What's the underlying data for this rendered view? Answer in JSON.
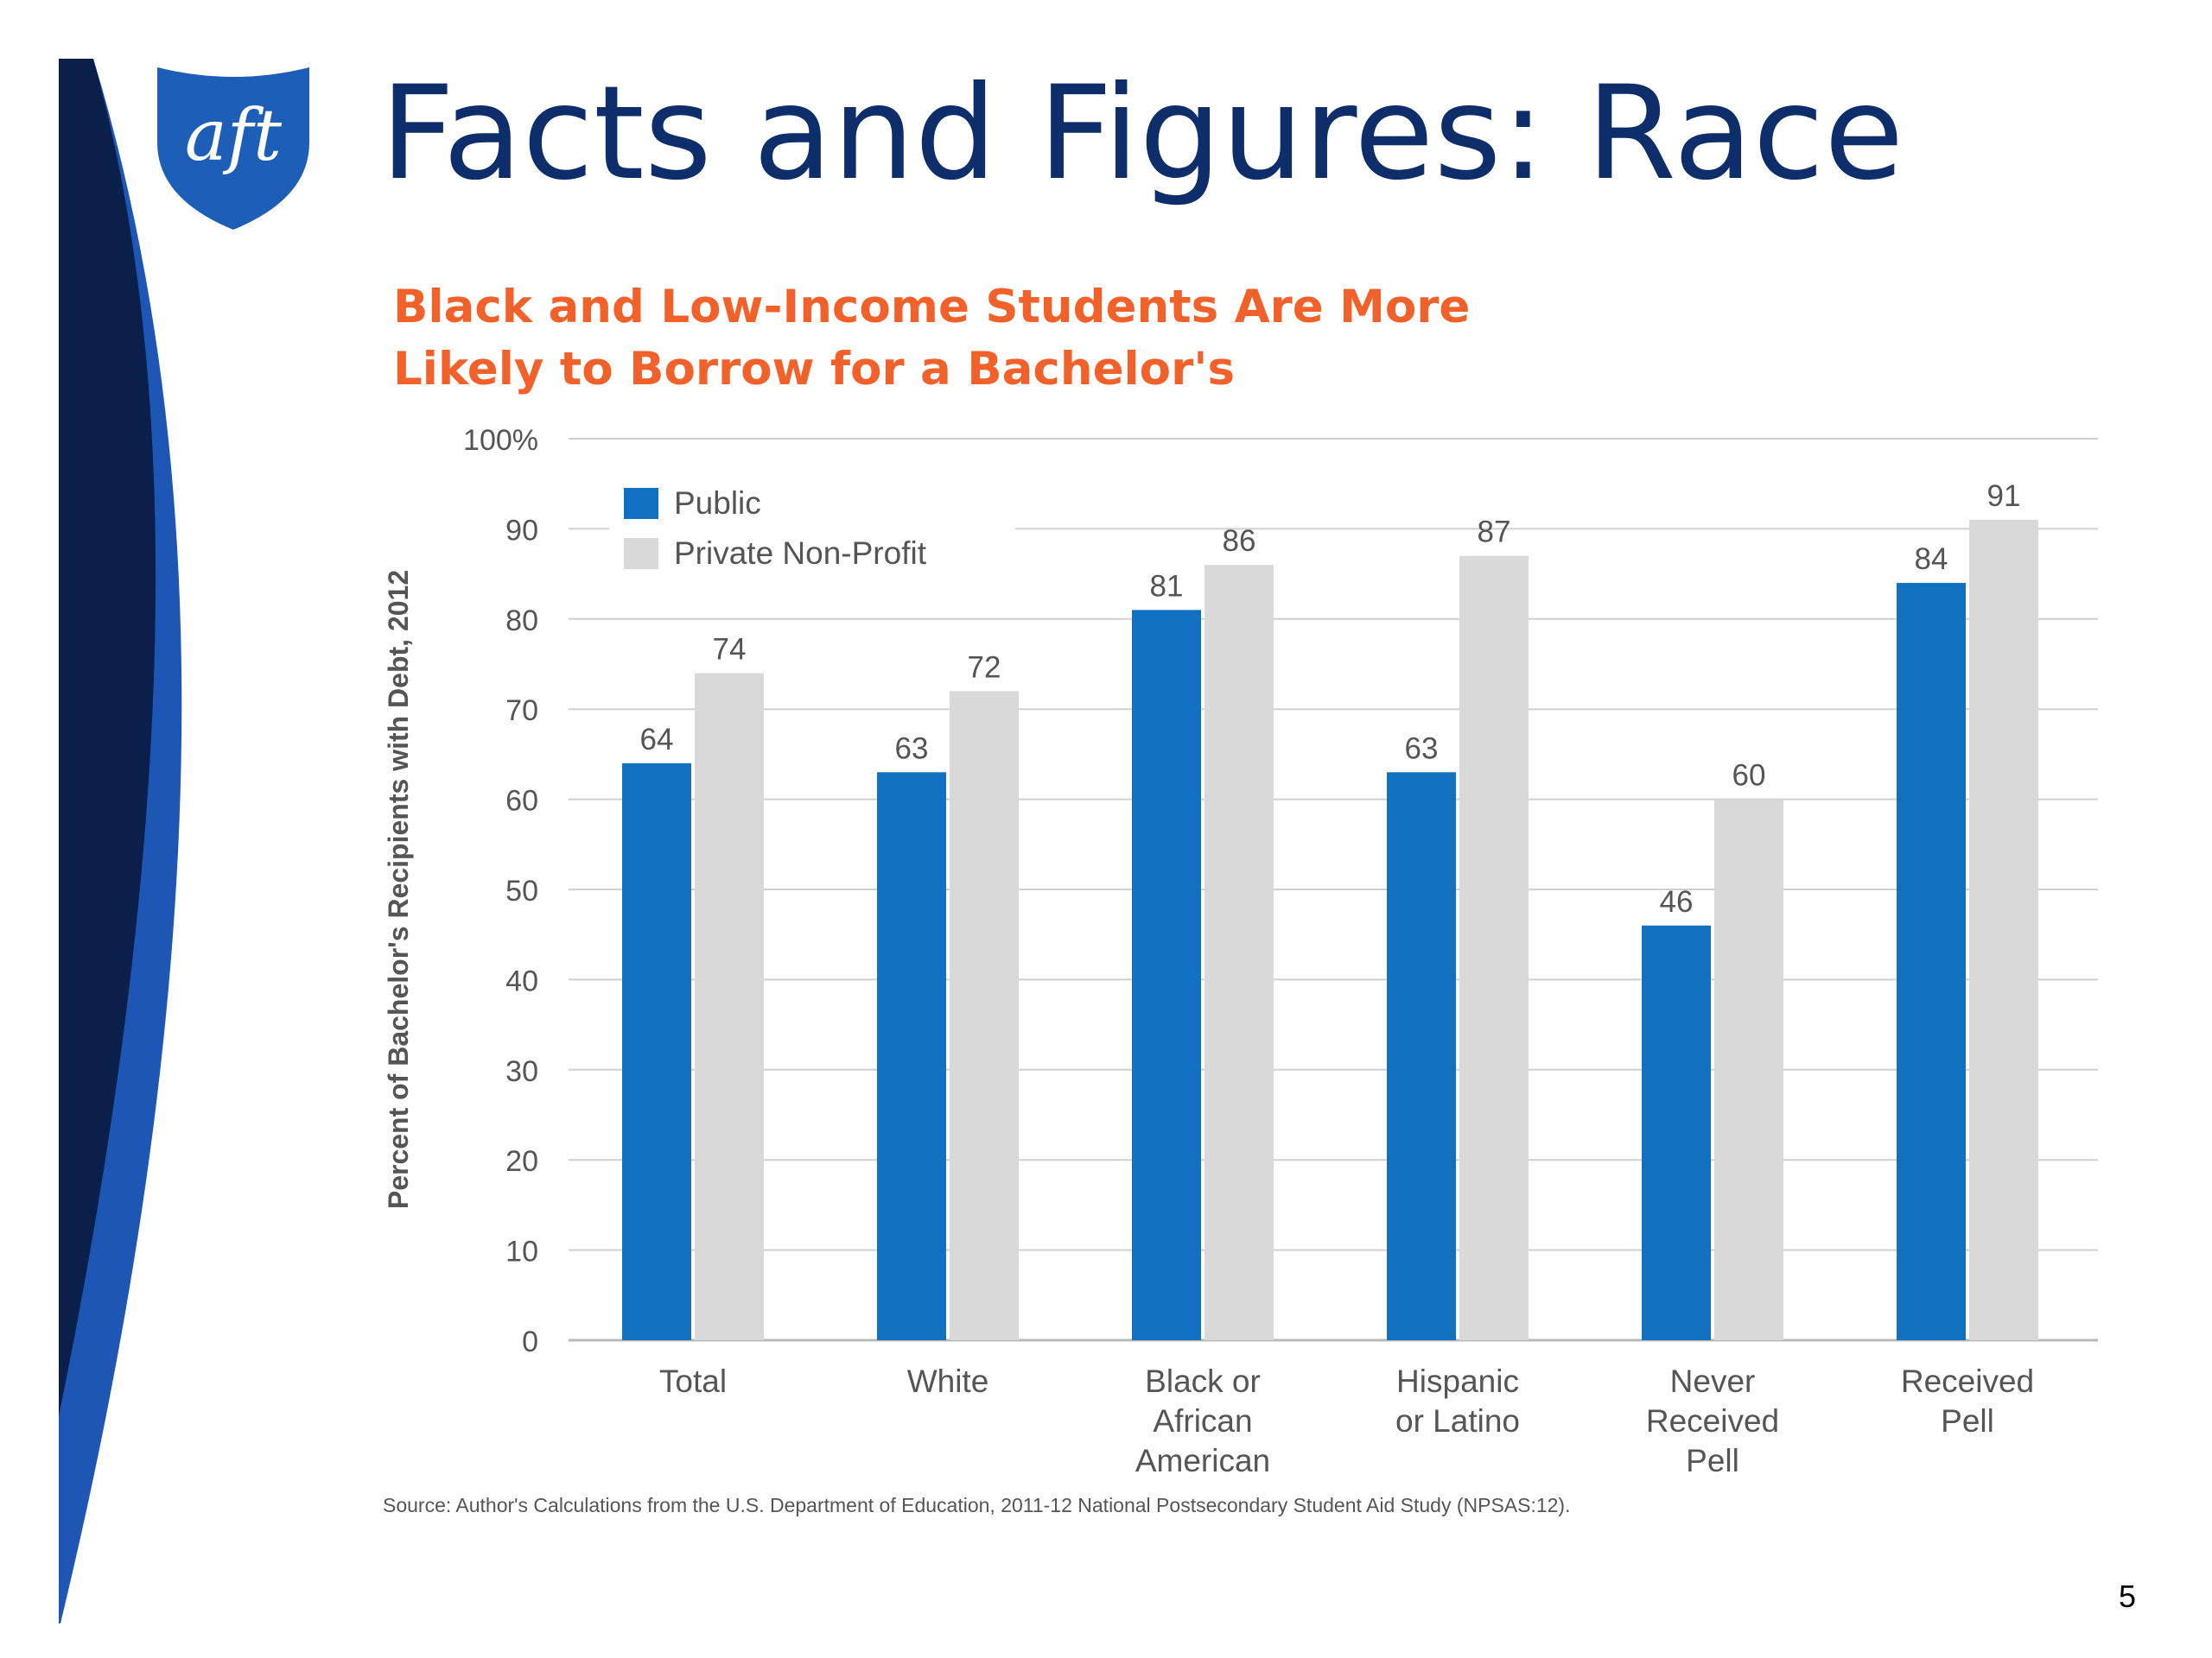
{
  "slide": {
    "title": "Facts and Figures: Race",
    "subtitle_line1": "Black and Low-Income Students Are More",
    "subtitle_line2": "Likely to Borrow for a Bachelor's",
    "source": "Source: Author's Calculations from the U.S. Department of Education, 2011-12 National Postsecondary Student Aid Study (NPSAS:12).",
    "page_number": "5",
    "logo_text": "aft"
  },
  "colors": {
    "title": "#0d2d6b",
    "subtitle": "#f2612a",
    "public": "#1170bf",
    "private": "#d9d9d9",
    "deco_navy": "#0b1f4b",
    "deco_blue": "#1d56b5",
    "logo": "#1d5fb8"
  },
  "chart_data": {
    "type": "bar",
    "title": "Black and Low-Income Students Are More Likely to Borrow for a Bachelor's",
    "ylabel": "Percent of Bachelor's Recipients with Debt, 2012",
    "xlabel": "",
    "ylim": [
      0,
      100
    ],
    "yticks": [
      0,
      10,
      20,
      30,
      40,
      50,
      60,
      70,
      80,
      90,
      100
    ],
    "ytick_labels": [
      "0",
      "10",
      "20",
      "30",
      "40",
      "50",
      "60",
      "70",
      "80",
      "90",
      "100%"
    ],
    "grid": true,
    "legend_position": "top-left",
    "categories": [
      [
        "Total"
      ],
      [
        "White"
      ],
      [
        "Black or",
        "African",
        "American"
      ],
      [
        "Hispanic",
        "or Latino"
      ],
      [
        "Never",
        "Received",
        "Pell"
      ],
      [
        "Received",
        "Pell"
      ]
    ],
    "series": [
      {
        "name": "Public",
        "color": "#1170bf",
        "values": [
          64,
          63,
          81,
          63,
          46,
          84
        ]
      },
      {
        "name": "Private Non-Profit",
        "color": "#d9d9d9",
        "values": [
          74,
          72,
          86,
          87,
          60,
          91
        ]
      }
    ]
  }
}
